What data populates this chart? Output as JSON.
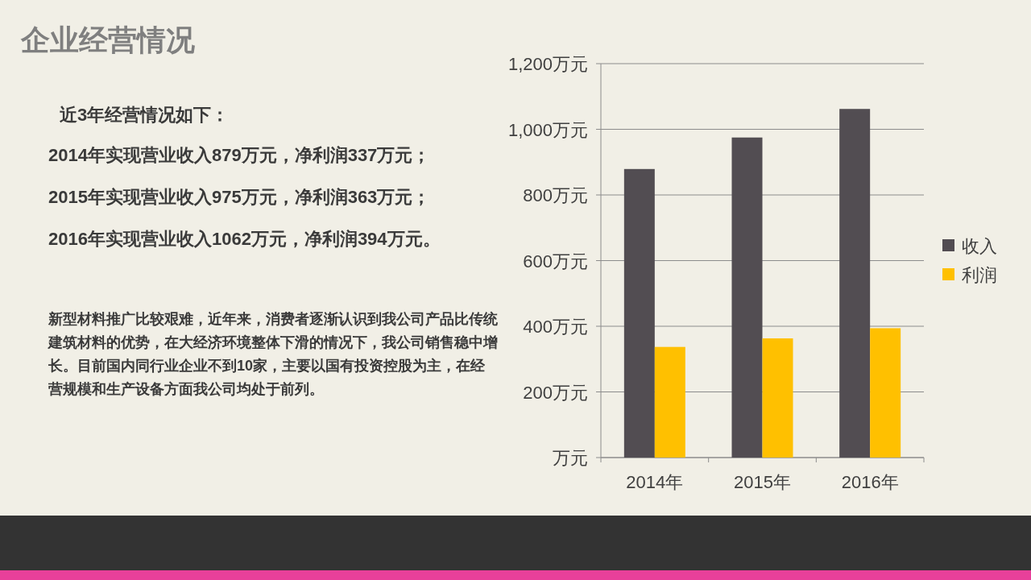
{
  "chart_data": {
    "type": "bar",
    "title": "企业经营情况",
    "annotations": [
      "近3年经营情况如下：",
      "2014年实现营业收入879万元，净利润337万元；",
      "2015年实现营业收入975万元，净利润363万元；",
      "2016年实现营业收入1062万元，净利润394万元。",
      "新型材料推广比较艰难，近年来，消费者逐渐认识到我公司产品比传统建筑材料的优势，在大经济环境整体下滑的情况下，我公司销售稳中增长。目前国内同行业企业不到10家，主要以国有投资控股为主，在经营规模和生产设备方面我公司均处于前列。"
    ],
    "categories": [
      "2014年",
      "2015年",
      "2016年"
    ],
    "series": [
      {
        "name": "收入",
        "color": "#524d52",
        "values": [
          879,
          975,
          1062
        ]
      },
      {
        "name": "利润",
        "color": "#ffc000",
        "values": [
          337,
          363,
          394
        ]
      }
    ],
    "ylim": [
      0,
      1200
    ],
    "yticks": [
      {
        "value": 0,
        "label": "万元"
      },
      {
        "value": 200,
        "label": "200万元"
      },
      {
        "value": 400,
        "label": "400万元"
      },
      {
        "value": 600,
        "label": "600万元"
      },
      {
        "value": 800,
        "label": "800万元"
      },
      {
        "value": 1000,
        "label": "1,000万元"
      },
      {
        "value": 1200,
        "label": "1,200万元"
      }
    ],
    "grid": "y",
    "legend": "right"
  }
}
